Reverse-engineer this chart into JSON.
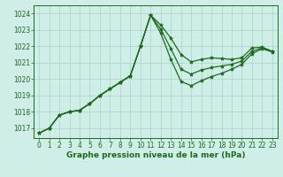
{
  "title": "Graphe pression niveau de la mer (hPa)",
  "background_color": "#d0eee8",
  "grid_color": "#a8d4c8",
  "line_color": "#1a6b1a",
  "x_ticks": [
    0,
    1,
    2,
    3,
    4,
    5,
    6,
    7,
    8,
    9,
    10,
    11,
    12,
    13,
    14,
    15,
    16,
    17,
    18,
    19,
    20,
    21,
    22,
    23
  ],
  "ylim": [
    1016.4,
    1024.5
  ],
  "yticks": [
    1017,
    1018,
    1019,
    1020,
    1021,
    1022,
    1023,
    1024
  ],
  "s1": [
    1016.7,
    1017.0,
    1017.8,
    1018.0,
    1018.1,
    1018.5,
    1019.0,
    1019.4,
    1019.8,
    1020.2,
    1022.0,
    1023.9,
    1023.3,
    1022.5,
    1021.5,
    1021.05,
    1021.2,
    1021.3,
    1021.25,
    1021.2,
    1021.3,
    1021.9,
    1021.95,
    1021.7
  ],
  "s2": [
    1016.7,
    1017.0,
    1017.8,
    1018.0,
    1018.1,
    1018.5,
    1019.0,
    1019.4,
    1019.8,
    1020.2,
    1022.0,
    1023.9,
    1022.8,
    1021.2,
    1019.85,
    1019.6,
    1019.9,
    1020.15,
    1020.35,
    1020.6,
    1020.9,
    1021.55,
    1021.85,
    1021.65
  ],
  "s3": [
    1016.7,
    1017.0,
    1017.8,
    1018.0,
    1018.1,
    1018.5,
    1019.0,
    1019.4,
    1019.8,
    1020.2,
    1022.0,
    1023.9,
    1023.05,
    1021.85,
    1020.6,
    1020.3,
    1020.55,
    1020.7,
    1020.8,
    1020.9,
    1021.1,
    1021.7,
    1021.9,
    1021.67
  ],
  "marker": "*",
  "marker_size": 3,
  "line_width": 0.9,
  "title_fontsize": 6.5,
  "tick_fontsize": 5.5
}
